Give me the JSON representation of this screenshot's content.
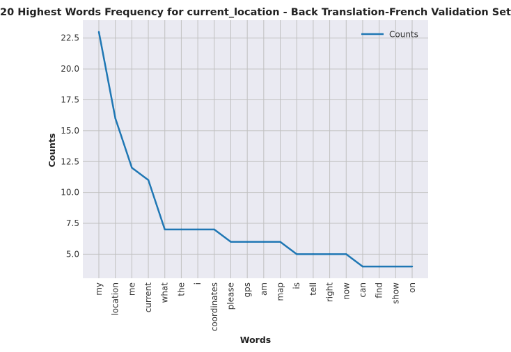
{
  "chart_data": {
    "type": "line",
    "title": "20 Highest Words Frequency for current_location - Back Translation-French Validation Set",
    "xlabel": "Words",
    "ylabel": "Counts",
    "categories": [
      "my",
      "location",
      "me",
      "current",
      "what",
      "the",
      "i",
      "coordinates",
      "please",
      "gps",
      "am",
      "map",
      "is",
      "tell",
      "right",
      "now",
      "can",
      "find",
      "show",
      "on"
    ],
    "series": [
      {
        "name": "Counts",
        "values": [
          23,
          16,
          12,
          11,
          7,
          7,
          7,
          7,
          6,
          6,
          6,
          6,
          5,
          5,
          5,
          5,
          4,
          4,
          4,
          4
        ]
      }
    ],
    "yticks": [
      "5.0",
      "7.5",
      "10.0",
      "12.5",
      "15.0",
      "17.5",
      "20.0",
      "22.5"
    ],
    "ylim": [
      3.05,
      23.95
    ],
    "grid": true,
    "legend_position": "top-right",
    "colors": {
      "line": "#1f77b4",
      "plot_bg": "#eaeaf2",
      "grid": "#c0c0c0"
    }
  }
}
